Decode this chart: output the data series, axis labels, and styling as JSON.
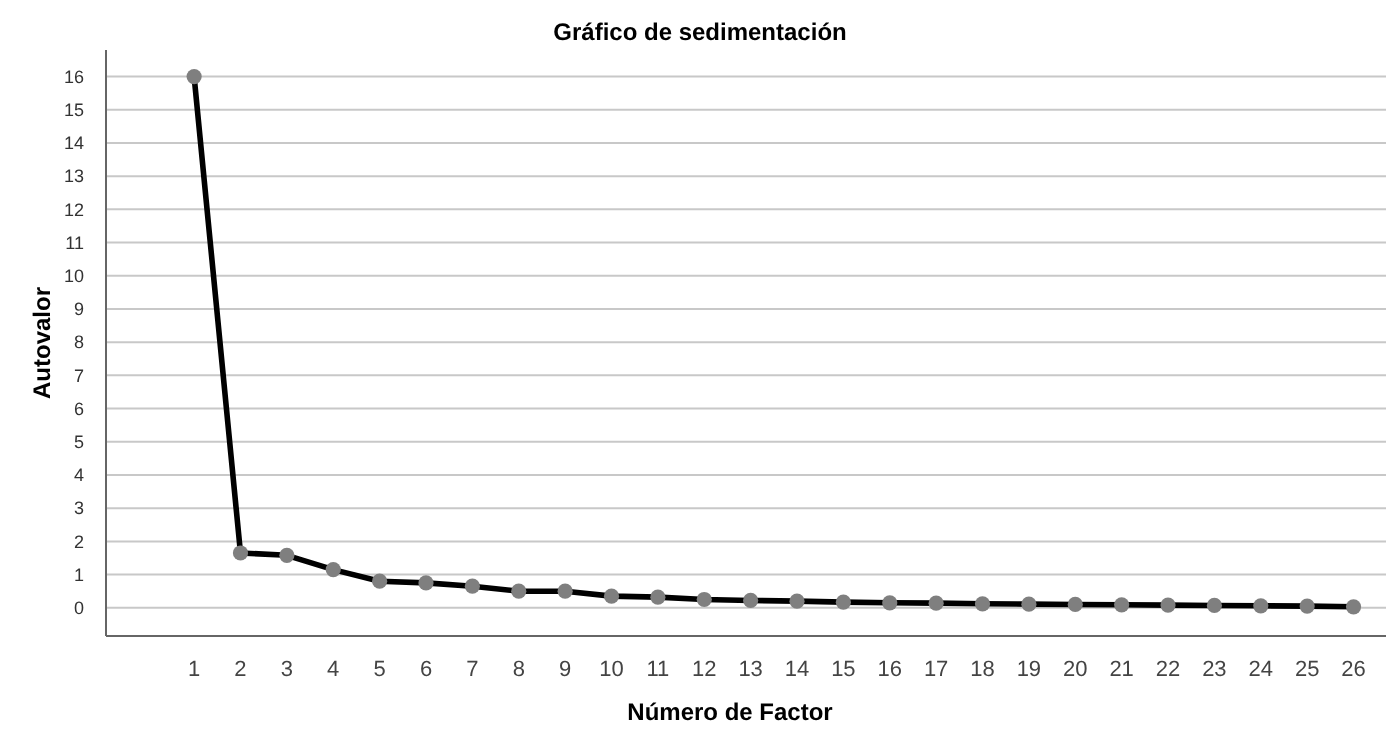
{
  "chart_data": {
    "type": "line",
    "title": "Gráfico de sedimentación",
    "xlabel": "Número de Factor",
    "ylabel": "Autovalor",
    "x": [
      1,
      2,
      3,
      4,
      5,
      6,
      7,
      8,
      9,
      10,
      11,
      12,
      13,
      14,
      15,
      16,
      17,
      18,
      19,
      20,
      21,
      22,
      23,
      24,
      25,
      26
    ],
    "series": [
      {
        "color": "#000000",
        "values": [
          16,
          1.65,
          1.58,
          1.15,
          0.8,
          0.75,
          0.65,
          0.5,
          0.5,
          0.35,
          0.32,
          0.25,
          0.22,
          0.2,
          0.17,
          0.15,
          0.14,
          0.12,
          0.11,
          0.1,
          0.09,
          0.08,
          0.07,
          0.06,
          0.05,
          0.03
        ]
      }
    ],
    "xlim": [
      -0.9,
      26.7
    ],
    "xticks": [
      1,
      2,
      3,
      4,
      5,
      6,
      7,
      8,
      9,
      10,
      11,
      12,
      13,
      14,
      15,
      16,
      17,
      18,
      19,
      20,
      21,
      22,
      23,
      24,
      25,
      26
    ],
    "ylim": [
      -0.85,
      16.8
    ],
    "yticks": [
      0,
      1,
      2,
      3,
      4,
      5,
      6,
      7,
      8,
      9,
      10,
      11,
      12,
      13,
      14,
      15,
      16
    ],
    "grid": "y",
    "marker": "circle",
    "line_style": "solid"
  }
}
